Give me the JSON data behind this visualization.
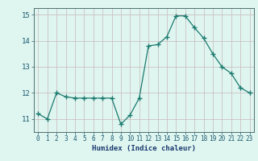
{
  "x": [
    0,
    1,
    2,
    3,
    4,
    5,
    6,
    7,
    8,
    9,
    10,
    11,
    12,
    13,
    14,
    15,
    16,
    17,
    18,
    19,
    20,
    21,
    22,
    23
  ],
  "y": [
    11.2,
    11.0,
    12.0,
    11.85,
    11.8,
    11.8,
    11.8,
    11.8,
    11.8,
    10.8,
    11.15,
    11.8,
    13.8,
    13.85,
    14.15,
    14.95,
    14.95,
    14.5,
    14.1,
    13.5,
    13.0,
    12.75,
    12.2,
    12.0
  ],
  "xlabel": "Humidex (Indice chaleur)",
  "ylim": [
    10.5,
    15.25
  ],
  "xlim": [
    -0.5,
    23.5
  ],
  "yticks": [
    11,
    12,
    13,
    14,
    15
  ],
  "xticks": [
    0,
    1,
    2,
    3,
    4,
    5,
    6,
    7,
    8,
    9,
    10,
    11,
    12,
    13,
    14,
    15,
    16,
    17,
    18,
    19,
    20,
    21,
    22,
    23
  ],
  "line_color": "#1a7a6e",
  "marker": "+",
  "marker_size": 4,
  "bg_color": "#dff5f0",
  "grid_color": "#c8b8b8",
  "tick_label_color": "#1a5a6e",
  "xlabel_color": "#1a3a6e",
  "axis_color": "#507070"
}
